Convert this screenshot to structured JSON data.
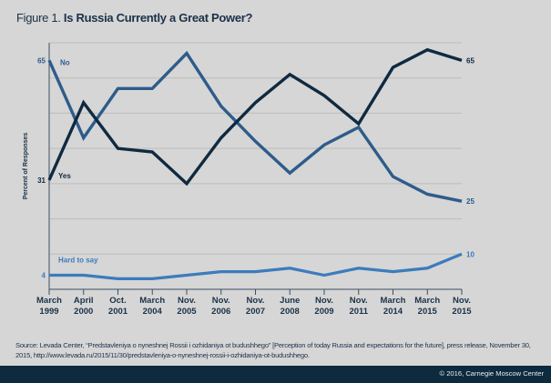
{
  "title": {
    "prefix": "Figure 1.",
    "main": "Is Russia Currently a Great Power?"
  },
  "chart_data": {
    "type": "line",
    "title": "Is Russia Currently a Great Power?",
    "ylabel": "Percent of Responses",
    "xlabel": "",
    "ylim": [
      0,
      70
    ],
    "grid": true,
    "categories": [
      [
        "March",
        "1999"
      ],
      [
        "April",
        "2000"
      ],
      [
        "Oct.",
        "2001"
      ],
      [
        "March",
        "2004"
      ],
      [
        "Nov.",
        "2005"
      ],
      [
        "Nov.",
        "2006"
      ],
      [
        "Nov.",
        "2007"
      ],
      [
        "June",
        "2008"
      ],
      [
        "Nov.",
        "2009"
      ],
      [
        "Nov.",
        "2011"
      ],
      [
        "March",
        "2014"
      ],
      [
        "March",
        "2015"
      ],
      [
        "Nov.",
        "2015"
      ]
    ],
    "series": [
      {
        "name": "No",
        "color": "#2e5c8a",
        "values": [
          65,
          43,
          57,
          57,
          67,
          52,
          42,
          33,
          41,
          46,
          32,
          27,
          25
        ],
        "start_label": "65",
        "end_label": "25"
      },
      {
        "name": "Yes",
        "color": "#0f2a40",
        "values": [
          31,
          53,
          40,
          39,
          30,
          43,
          53,
          61,
          55,
          47,
          63,
          68,
          65
        ],
        "start_label": "31",
        "end_label": "65"
      },
      {
        "name": "Hard to say",
        "color": "#3c7bbd",
        "values": [
          4,
          4,
          3,
          3,
          4,
          5,
          5,
          6,
          4,
          6,
          5,
          6,
          10
        ],
        "start_label": "4",
        "end_label": "10"
      }
    ]
  },
  "source": "Source: Levada Center, “Predstavleniya o nyneshnej Rossii i ozhidaniya ot budushhego” [Perception of today Russia and expectations for the future], press release, November 30, 2015, http://www.levada.ru/2015/11/30/predstavleniya-o-nyneshnej-rossii-i-ozhidaniya-ot-budushhego.",
  "copyright": "© 2016, Carnegie Moscow Center"
}
